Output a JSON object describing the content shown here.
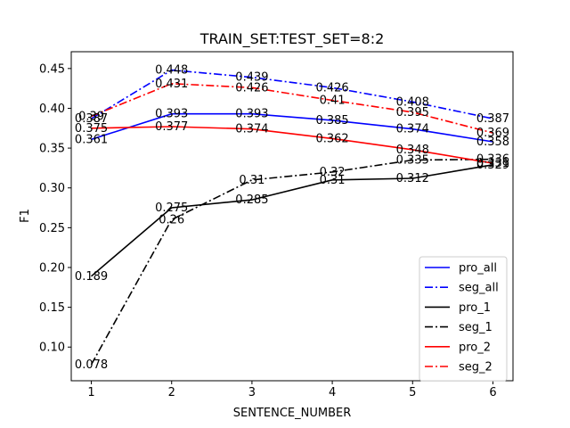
{
  "chart_data": {
    "type": "line",
    "title": "TRAIN_SET:TEST_SET=8:2",
    "xlabel": "SENTENCE_NUMBER",
    "ylabel": "F1",
    "x": [
      1,
      2,
      3,
      4,
      5,
      6
    ],
    "xlim": [
      0.75,
      6.25
    ],
    "ylim": [
      0.0577,
      0.4711
    ],
    "xticks": [
      "1",
      "2",
      "3",
      "4",
      "5",
      "6"
    ],
    "yticks": [
      "0.10",
      "0.15",
      "0.20",
      "0.25",
      "0.30",
      "0.35",
      "0.40",
      "0.45"
    ],
    "ytick_values": [
      0.1,
      0.15,
      0.2,
      0.25,
      0.3,
      0.35,
      0.4,
      0.45
    ],
    "grid": false,
    "legend_position": "lower-right",
    "series": [
      {
        "name": "pro_all",
        "color": "#0000ff",
        "dash": "solid",
        "values": [
          0.361,
          0.393,
          0.393,
          0.385,
          0.374,
          0.358
        ],
        "labels": [
          "0.361",
          "0.393",
          "0.393",
          "0.385",
          "0.374",
          "0.358"
        ]
      },
      {
        "name": "seg_all",
        "color": "#0000ff",
        "dash": "dashdot",
        "values": [
          0.387,
          0.448,
          0.439,
          0.426,
          0.408,
          0.387
        ],
        "labels": [
          "0.387",
          "0.448",
          "0.439",
          "0.426",
          "0.408",
          "0.387"
        ]
      },
      {
        "name": "pro_1",
        "color": "#000000",
        "dash": "solid",
        "values": [
          0.189,
          0.275,
          0.285,
          0.31,
          0.312,
          0.329
        ],
        "labels": [
          "0.189",
          "0.275",
          "0.285",
          "0.31",
          "0.312",
          "0.329"
        ]
      },
      {
        "name": "seg_1",
        "color": "#000000",
        "dash": "dashdot",
        "values": [
          0.078,
          0.26,
          0.31,
          0.32,
          0.335,
          0.336
        ],
        "labels": [
          "0.078",
          "0.26",
          "0.31",
          "0.32",
          "0.335",
          "0.336"
        ]
      },
      {
        "name": "pro_2",
        "color": "#ff0000",
        "dash": "solid",
        "values": [
          0.375,
          0.377,
          0.374,
          0.362,
          0.348,
          0.331
        ],
        "labels": [
          "0.375",
          "0.377",
          "0.374",
          "0.362",
          "0.348",
          "0.331"
        ]
      },
      {
        "name": "seg_2",
        "color": "#ff0000",
        "dash": "dashdot",
        "values": [
          0.39,
          0.431,
          0.426,
          0.41,
          0.395,
          0.369
        ],
        "labels": [
          "0.39",
          "0.431",
          "0.426",
          "0.41",
          "0.395",
          "0.369"
        ]
      }
    ]
  }
}
